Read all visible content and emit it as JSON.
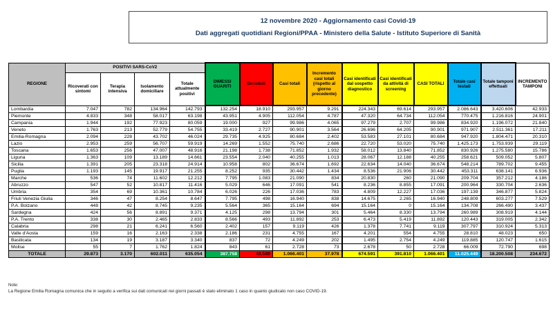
{
  "title": {
    "line1": "12 novembre 2020 - Aggiornamento casi Covid-19",
    "line2": "Dati aggregati quotidiani Regioni/PPAA - Ministero della Salute - Istituto Superiore di Sanità"
  },
  "table": {
    "group_header": "POSITIVI SARS-CoV2",
    "columns": [
      "REGIONE",
      "Ricoverati con sintomi",
      "Terapia intensiva",
      "Isolamento domiciliare",
      "Totale attualmente positivi",
      "DIMESSI GUARITI",
      "Deceduti",
      "Casi totali",
      "Incremento casi totali (rispetto al giorno precedente)",
      "Casi identificati dal sospetto diagnostico",
      "Casi identificati da attività di screening",
      "CASI TOTALI",
      "Totale casi testati",
      "Totale tamponi effettuati",
      "INCREMENTO TAMPONI"
    ],
    "rows": [
      [
        "Lombardia",
        "7.047",
        "782",
        "134.964",
        "142.793",
        "132.254",
        "18.910",
        "293.957",
        "9.291",
        "224.343",
        "69.614",
        "293.957",
        "2.086.643",
        "3.420.606",
        "42.933"
      ],
      [
        "Piemonte",
        "4.833",
        "348",
        "58.017",
        "63.198",
        "43.951",
        "4.905",
        "112.054",
        "4.787",
        "47.320",
        "64.734",
        "112.054",
        "770.475",
        "1.216.816",
        "24.901"
      ],
      [
        "Campania",
        "1.944",
        "192",
        "77.923",
        "80.059",
        "19.000",
        "927",
        "99.986",
        "4.065",
        "97.279",
        "2.707",
        "99.986",
        "834.920",
        "1.196.072",
        "21.840"
      ],
      [
        "Veneto",
        "1.763",
        "213",
        "52.779",
        "54.755",
        "33.419",
        "2.727",
        "90.901",
        "3.564",
        "26.696",
        "64.205",
        "90.901",
        "971.907",
        "2.511.361",
        "17.211"
      ],
      [
        "Emilia-Romagna",
        "2.094",
        "228",
        "43.702",
        "46.024",
        "29.735",
        "4.925",
        "80.684",
        "2.402",
        "53.583",
        "27.101",
        "80.684",
        "947.920",
        "1.804.471",
        "20.310"
      ],
      [
        "Lazio",
        "2.953",
        "259",
        "56.707",
        "59.919",
        "14.269",
        "1.552",
        "75.740",
        "2.686",
        "22.720",
        "53.020",
        "75.740",
        "1.425.173",
        "1.753.939",
        "29.119"
      ],
      [
        "Toscana",
        "1.653",
        "256",
        "47.007",
        "48.916",
        "21.198",
        "1.738",
        "71.852",
        "1.932",
        "58.012",
        "13.840",
        "71.852",
        "830.926",
        "1.275.580",
        "15.786"
      ],
      [
        "Liguria",
        "1.363",
        "109",
        "13.189",
        "14.661",
        "23.554",
        "2.040",
        "40.255",
        "1.013",
        "28.067",
        "12.188",
        "40.255",
        "258.621",
        "509.052",
        "5.807"
      ],
      [
        "Sicilia",
        "1.391",
        "205",
        "23.318",
        "24.914",
        "10.958",
        "802",
        "36.674",
        "1.692",
        "22.634",
        "14.040",
        "36.674",
        "548.214",
        "789.702",
        "9.455"
      ],
      [
        "Puglia",
        "1.193",
        "145",
        "19.917",
        "21.255",
        "8.252",
        "935",
        "30.442",
        "1.434",
        "8.536",
        "21.906",
        "30.442",
        "453.311",
        "638.141",
        "6.936"
      ],
      [
        "Marche",
        "536",
        "74",
        "11.602",
        "12.212",
        "7.795",
        "1.083",
        "21.090",
        "834",
        "20.830",
        "260",
        "21.090",
        "209.704",
        "357.212",
        "4.186"
      ],
      [
        "Abruzzo",
        "547",
        "52",
        "10.817",
        "11.416",
        "5.029",
        "646",
        "17.091",
        "541",
        "8.236",
        "8.855",
        "17.091",
        "200.964",
        "330.704",
        "2.636"
      ],
      [
        "Umbria",
        "354",
        "69",
        "10.361",
        "10.784",
        "6.026",
        "226",
        "17.036",
        "783",
        "4.809",
        "12.227",
        "17.036",
        "197.139",
        "346.877",
        "5.824"
      ],
      [
        "Friuli Venezia Giulia",
        "346",
        "47",
        "8.254",
        "8.647",
        "7.795",
        "498",
        "16.940",
        "838",
        "14.675",
        "2.265",
        "16.940",
        "248.809",
        "603.277",
        "7.529"
      ],
      [
        "P.A. Bolzano",
        "448",
        "42",
        "8.745",
        "9.235",
        "5.564",
        "365",
        "15.164",
        "694",
        "15.164",
        "0",
        "15.164",
        "134.708",
        "266.490",
        "3.437"
      ],
      [
        "Sardegna",
        "424",
        "56",
        "8.891",
        "9.371",
        "4.125",
        "298",
        "13.794",
        "301",
        "5.464",
        "8.330",
        "13.794",
        "260.989",
        "308.919",
        "4.144"
      ],
      [
        "P.A. Trento",
        "338",
        "30",
        "2.465",
        "2.833",
        "8.566",
        "493",
        "11.892",
        "253",
        "6.473",
        "5.419",
        "11.892",
        "120.443",
        "319.005",
        "2.342"
      ],
      [
        "Calabria",
        "298",
        "21",
        "6.241",
        "6.560",
        "2.402",
        "157",
        "9.119",
        "426",
        "1.378",
        "7.741",
        "9.119",
        "307.797",
        "310.924",
        "5.313"
      ],
      [
        "Valle d'Aosta",
        "159",
        "16",
        "2.163",
        "2.338",
        "2.186",
        "231",
        "4.755",
        "167",
        "4.201",
        "554",
        "4.755",
        "28.810",
        "48.023",
        "650"
      ],
      [
        "Basilicata",
        "134",
        "19",
        "3.187",
        "3.340",
        "837",
        "72",
        "4.249",
        "202",
        "1.495",
        "2.754",
        "4.249",
        "119.885",
        "120.747",
        "1.615"
      ],
      [
        "Molise",
        "55",
        "7",
        "1.762",
        "1.824",
        "843",
        "61",
        "2.728",
        "73",
        "2.678",
        "50",
        "2.728",
        "66.009",
        "72.790",
        "698"
      ]
    ],
    "total_row": [
      "TOTALE",
      "29.873",
      "3.170",
      "602.011",
      "635.054",
      "387.758",
      "43.589",
      "1.066.401",
      "37.978",
      "674.591",
      "391.810",
      "1.066.401",
      "11.025.449",
      "18.200.508",
      "234.672"
    ]
  },
  "footer": {
    "note_label": "Note:",
    "text": "La Regione Emilia Romagna comunica che in seguito a verifica sui dati comunicati nei giorni passati è stato eliminato 1 caso in quanto giudicato non caso COVID-19."
  },
  "colors": {
    "header_green": "#00B050",
    "header_red": "#FF0000",
    "header_orange": "#FFC000",
    "header_yellow": "#FFFF00",
    "header_cyan": "#00B0F0",
    "header_lightblue": "#BDD7EE",
    "header_gray": "#BFBFBF",
    "group_gray": "#D9D9D9",
    "title_text": "#17365D"
  }
}
